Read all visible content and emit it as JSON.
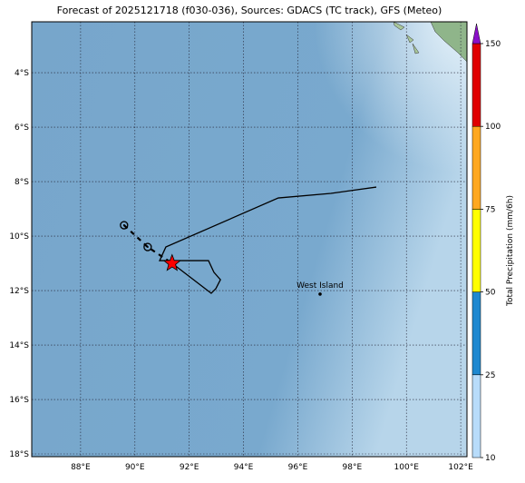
{
  "title": "Forecast of 2025121718 (f030-036), Sources: GDACS (TC track), GFS (Meteo)",
  "map": {
    "lonlim": [
      86.2,
      102.23
    ],
    "latlim": [
      -18.1,
      -2.13
    ],
    "grid": true,
    "lonticks": [
      {
        "value": 88,
        "label": "88°E"
      },
      {
        "value": 90,
        "label": "90°E"
      },
      {
        "value": 92,
        "label": "92°E"
      },
      {
        "value": 94,
        "label": "94°E"
      },
      {
        "value": 96,
        "label": "96°E"
      },
      {
        "value": 98,
        "label": "98°E"
      },
      {
        "value": 100,
        "label": "100°E"
      },
      {
        "value": 102,
        "label": "102°E"
      }
    ],
    "latticks": [
      {
        "value": -4,
        "label": "4°S"
      },
      {
        "value": -6,
        "label": "6°S"
      },
      {
        "value": -8,
        "label": "8°S"
      },
      {
        "value": -10,
        "label": "10°S"
      },
      {
        "value": -12,
        "label": "12°S"
      },
      {
        "value": -14,
        "label": "14°S"
      },
      {
        "value": -16,
        "label": "16°S"
      },
      {
        "value": -18,
        "label": "18°S"
      }
    ]
  },
  "track": {
    "color": "#000000",
    "lon": [
      98.89,
      97.22,
      95.28,
      91.14,
      90.91,
      92.71,
      92.91,
      93.15,
      92.98,
      92.81,
      91.37
    ],
    "lat": [
      -8.2,
      -8.43,
      -8.6,
      -10.4,
      -10.9,
      -10.9,
      -11.33,
      -11.6,
      -11.93,
      -12.1,
      -11.0
    ]
  },
  "forecast_positions": {
    "lon": [
      89.6,
      90.47,
      91.37
    ],
    "lat": [
      -9.6,
      -10.4,
      -11.0
    ],
    "current_color": "#ff0000"
  },
  "annotations": [
    {
      "text": "West Island",
      "lon": 96.82,
      "lat": -12.13
    }
  ],
  "colorbar": {
    "label": "Total Precipitation (mm/6h)",
    "levels": [
      10,
      25,
      50,
      75,
      100,
      150
    ],
    "colors": [
      "#b8dcfa",
      "#1e88d0",
      "#ffff00",
      "#ffa820",
      "#e00000"
    ],
    "extend_color": "#8a10c8"
  }
}
